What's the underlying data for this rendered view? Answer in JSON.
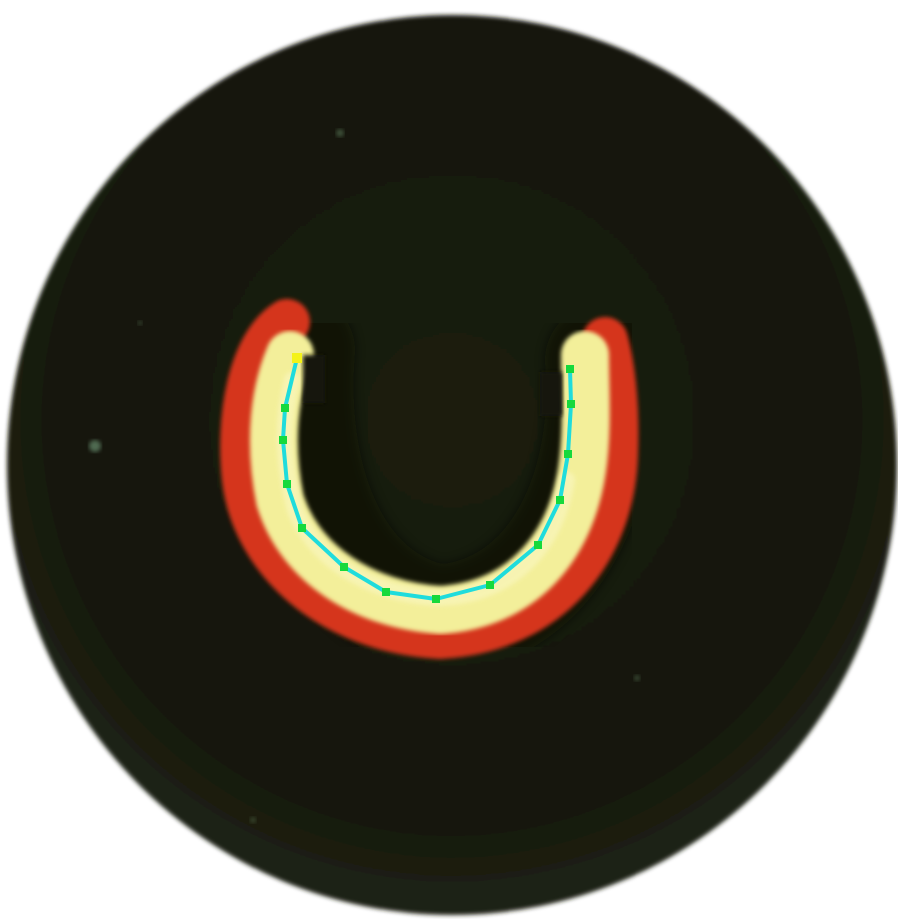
{
  "colors": {
    "background": "#ffffff",
    "dish": "#17190c",
    "dish_edge": "#22261a",
    "outer_ring": "#d5351c",
    "outer_ring_dark": "#a8271a",
    "inner_band": "#f3ef9a",
    "inner_band_highlight": "#fbf8c7",
    "trace_line": "#1fdcdc",
    "trace_point": "#16d93c",
    "trace_start": "#f4f21a",
    "speck": "#8fbf8a"
  },
  "icons": {
    "dish": "circular-dish",
    "specimen": "u-shaped-specimen",
    "trace": "centerline-trace"
  }
}
